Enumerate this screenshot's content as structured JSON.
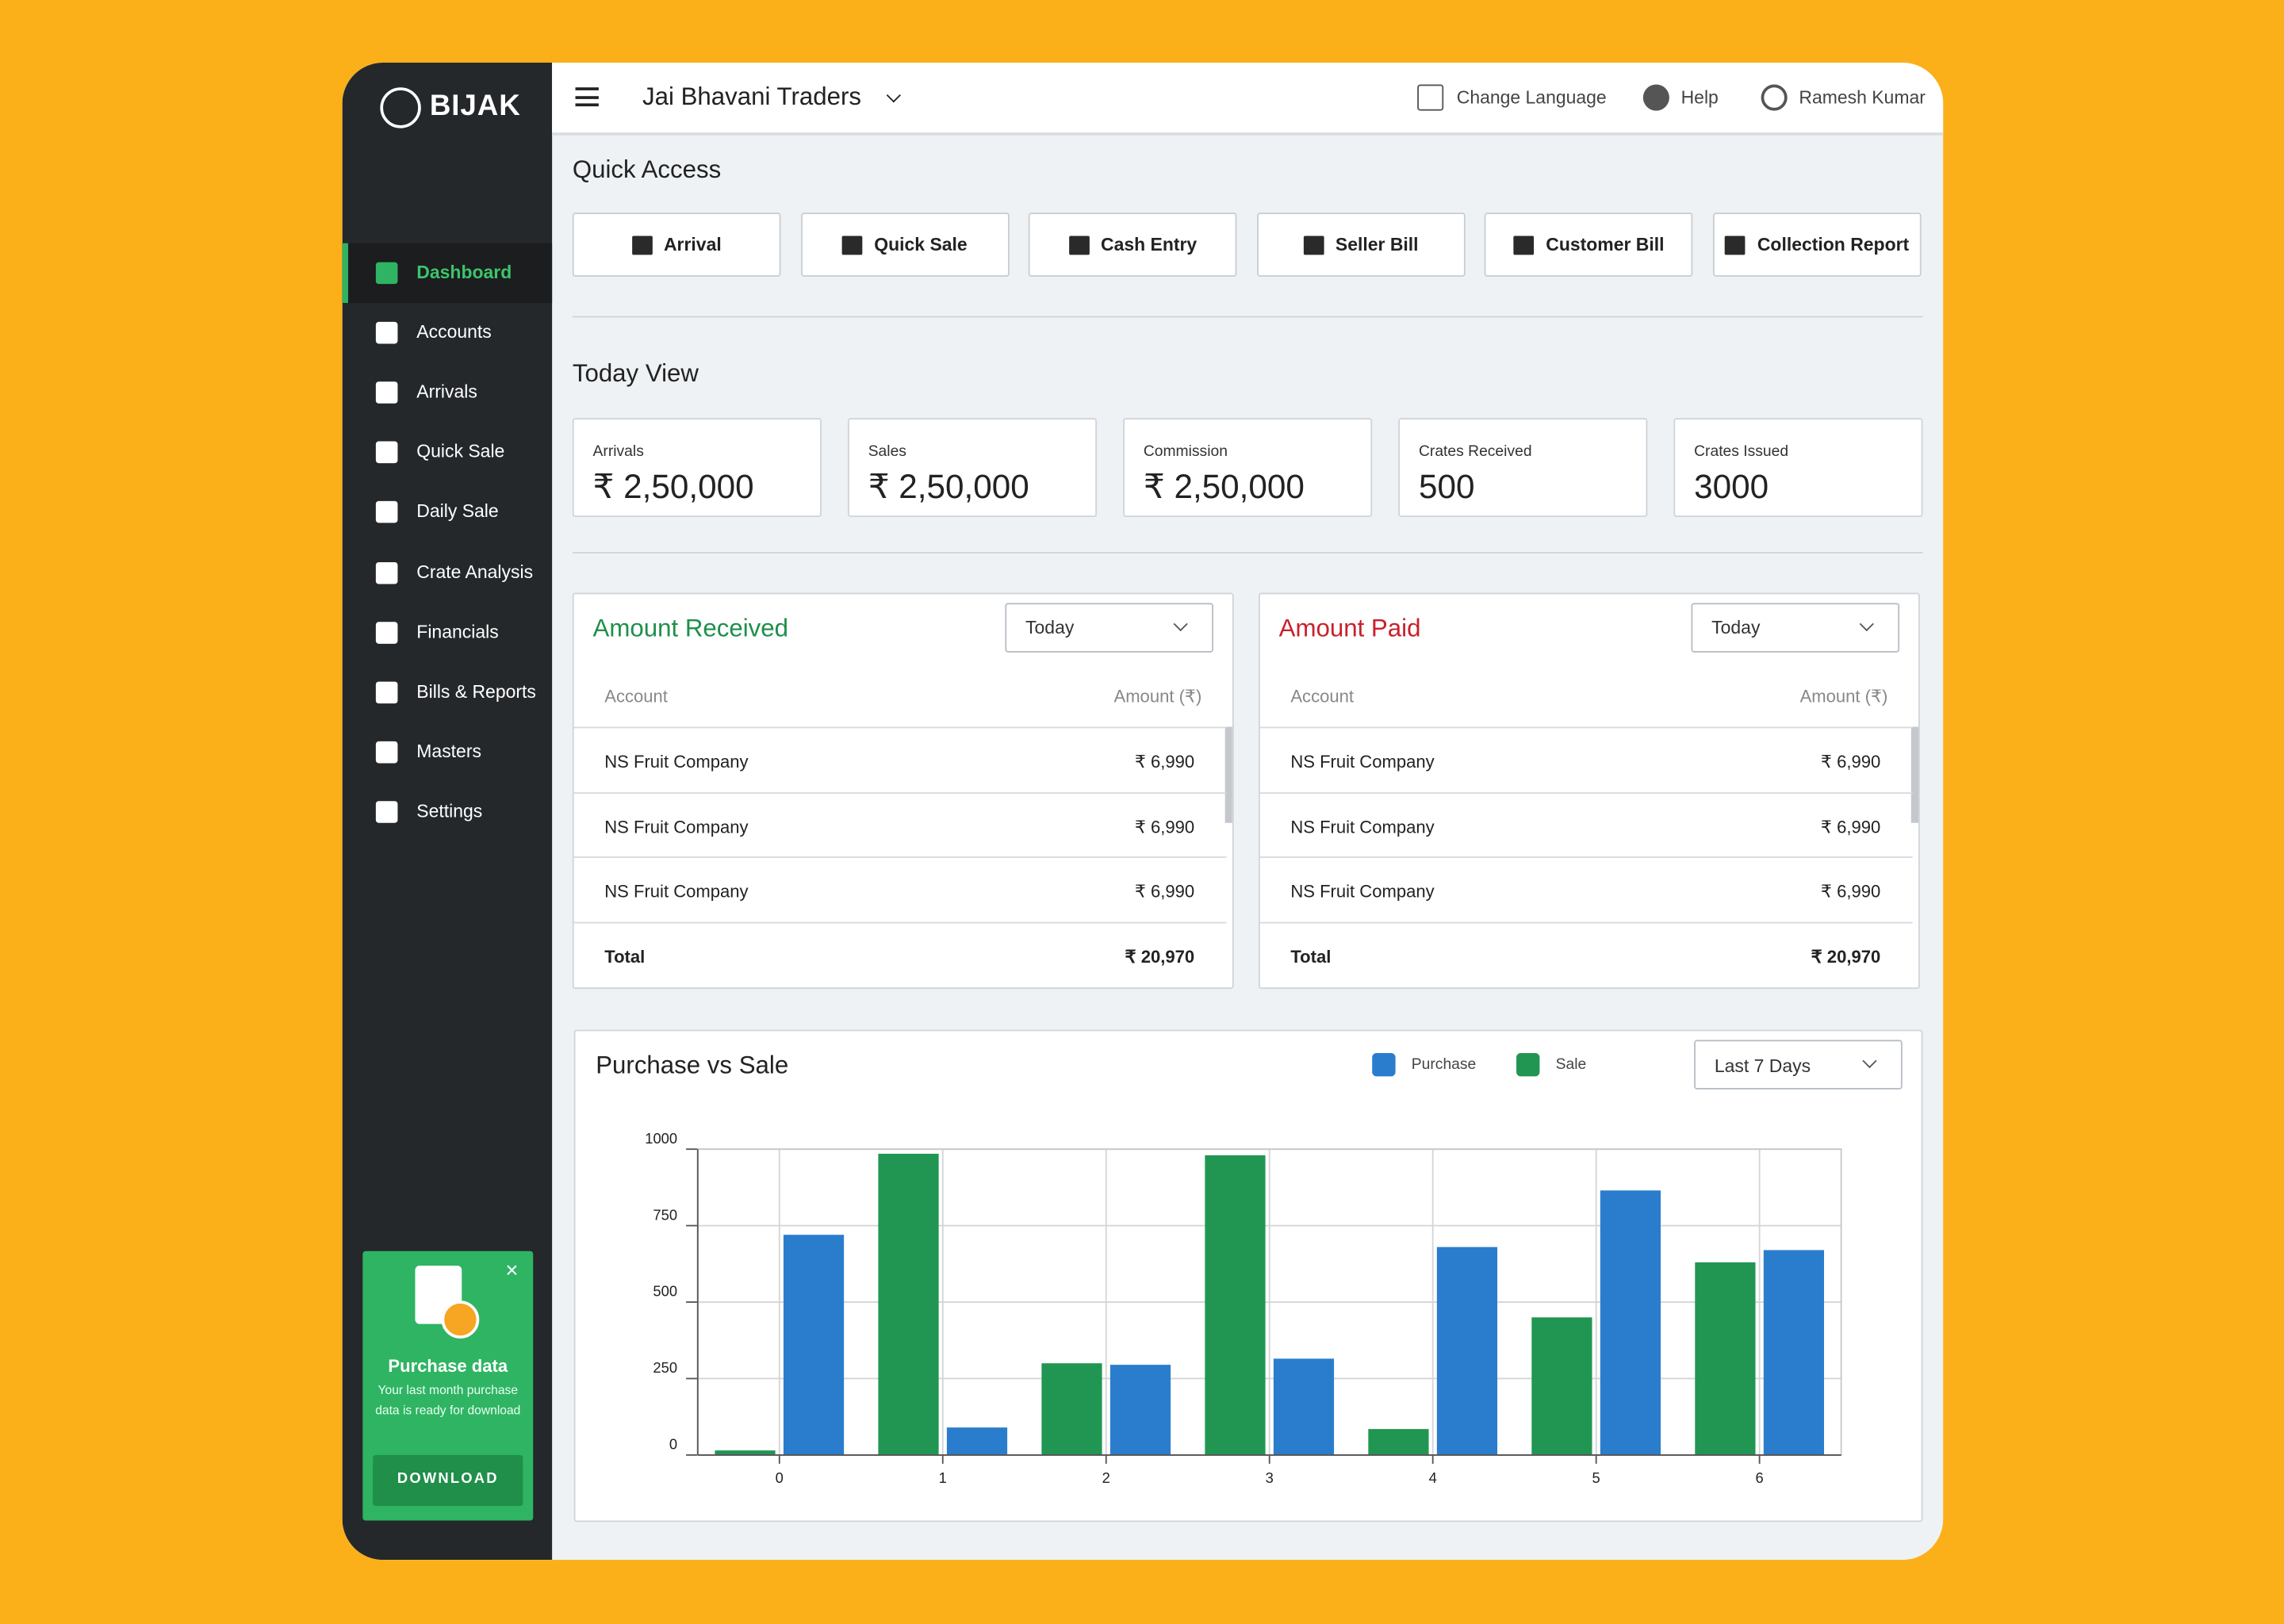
{
  "sidebar": {
    "logo": "BIJAK",
    "nav": [
      "Dashboard",
      "Accounts",
      "Arrivals",
      "Quick Sale",
      "Daily Sale",
      "Crate Analysis",
      "Financials",
      "Bills & Reports",
      "Masters",
      "Settings"
    ],
    "promo": {
      "title": "Purchase data",
      "text": "Your last month purchase data is ready for download",
      "button": "DOWNLOAD"
    }
  },
  "header": {
    "company": "Jai Bhavani Traders",
    "language": "Change Language",
    "help": "Help",
    "user": "Ramesh Kumar"
  },
  "quick_access": {
    "title": "Quick Access",
    "buttons": [
      "Arrival",
      "Quick Sale",
      "Cash Entry",
      "Seller Bill",
      "Customer Bill",
      "Collection Report"
    ]
  },
  "today_view": {
    "title": "Today View",
    "cards": [
      {
        "label": "Arrivals",
        "value": "₹ 2,50,000"
      },
      {
        "label": "Sales",
        "value": "₹ 2,50,000"
      },
      {
        "label": "Commission",
        "value": "₹ 2,50,000"
      },
      {
        "label": "Crates Received",
        "value": 500
      },
      {
        "label": "Crates Issued",
        "value": 3000
      }
    ]
  },
  "amount_received": {
    "title": "Amount Received",
    "period": "Today",
    "columns": [
      "Account",
      "Amount (₹)"
    ],
    "rows": [
      [
        "NS Fruit Company",
        "₹ 6,990"
      ],
      [
        "NS Fruit Company",
        "₹ 6,990"
      ],
      [
        "NS Fruit Company",
        "₹ 6,990"
      ]
    ],
    "total": [
      "Total",
      "₹ 20,970"
    ]
  },
  "amount_paid": {
    "title": "Amount Paid",
    "period": "Today",
    "columns": [
      "Account",
      "Amount (₹)"
    ],
    "rows": [
      [
        "NS Fruit Company",
        "₹ 6,990"
      ],
      [
        "NS Fruit Company",
        "₹ 6,990"
      ],
      [
        "NS Fruit Company",
        "₹ 6,990"
      ]
    ],
    "total": [
      "Total",
      "₹ 20,970"
    ]
  },
  "chart_data": {
    "type": "bar",
    "title": "Purchase vs Sale",
    "period": "Last 7 Days",
    "x": [
      0,
      1,
      2,
      3,
      4,
      5,
      6
    ],
    "series": [
      {
        "name": "Purchase",
        "color": "#2a7dcc",
        "values": [
          720,
          90,
          295,
          315,
          680,
          865,
          670
        ]
      },
      {
        "name": "Sale",
        "color": "#219653",
        "values": [
          15,
          985,
          300,
          980,
          85,
          450,
          630
        ]
      }
    ],
    "xlim": [
      -0.5,
      6.5
    ],
    "xticks": [
      0,
      1,
      2,
      3,
      4,
      5,
      6
    ],
    "ylim": [
      0,
      1000
    ],
    "yticks": [
      0,
      250,
      500,
      750,
      1000
    ],
    "grid": true
  }
}
